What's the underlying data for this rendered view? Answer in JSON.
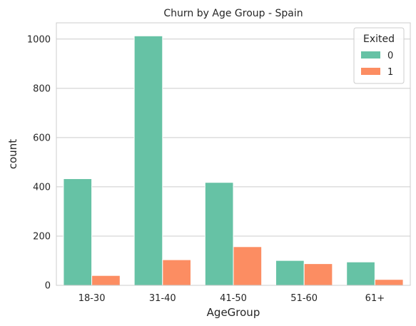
{
  "chart_data": {
    "type": "bar",
    "title": "Churn by Age Group - Spain",
    "xlabel": "AgeGroup",
    "ylabel": "count",
    "categories": [
      "18-30",
      "31-40",
      "41-50",
      "51-60",
      "61+"
    ],
    "series": [
      {
        "name": "0",
        "values": [
          433,
          1013,
          418,
          101,
          95
        ],
        "color": "#66c2a5"
      },
      {
        "name": "1",
        "values": [
          40,
          104,
          157,
          88,
          24
        ],
        "color": "#fc8d62"
      }
    ],
    "ylim": [
      0,
      1066
    ],
    "yticks": [
      0,
      200,
      400,
      600,
      800,
      1000
    ],
    "grid": true,
    "legend": {
      "title": "Exited",
      "placement": "top-right"
    }
  }
}
